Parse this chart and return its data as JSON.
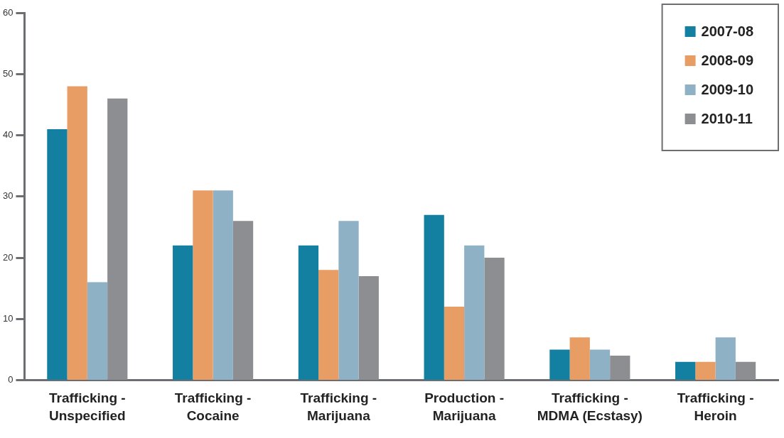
{
  "chart_data": {
    "type": "bar",
    "categories": [
      "Trafficking - Unspecified",
      "Trafficking - Cocaine",
      "Trafficking - Marijuana",
      "Production - Marijuana",
      "Trafficking - MDMA (Ecstasy)",
      "Trafficking - Heroin"
    ],
    "series": [
      {
        "name": "2007-08",
        "color": "#137fa1",
        "values": [
          41,
          22,
          22,
          27,
          5,
          3
        ]
      },
      {
        "name": "2008-09",
        "color": "#e89d65",
        "values": [
          48,
          31,
          18,
          12,
          7,
          3
        ]
      },
      {
        "name": "2009-10",
        "color": "#8fb1c6",
        "values": [
          16,
          31,
          26,
          22,
          5,
          7
        ]
      },
      {
        "name": "2010-11",
        "color": "#8d8e92",
        "values": [
          46,
          26,
          17,
          20,
          4,
          3
        ]
      }
    ],
    "ylim": [
      0,
      60
    ],
    "yticks": [
      0,
      10,
      20,
      30,
      40,
      50,
      60
    ],
    "grid": false,
    "legend": "top right"
  }
}
